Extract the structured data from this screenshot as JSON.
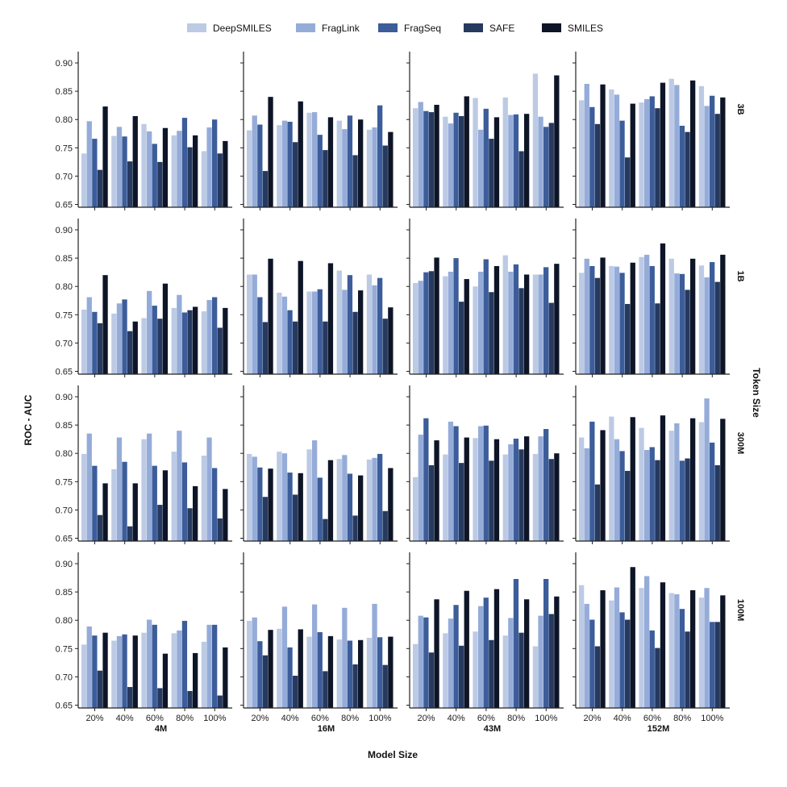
{
  "chart_data": {
    "type": "bar",
    "xlabel": "Model Size",
    "ylabel": "ROC - AUC",
    "facet_right_label": "Token Size",
    "ylim": [
      0.645,
      0.92
    ],
    "yticks": [
      "0.65",
      "0.70",
      "0.75",
      "0.80",
      "0.85",
      "0.90"
    ],
    "yticks_values": [
      0.65,
      0.7,
      0.75,
      0.8,
      0.85,
      0.9
    ],
    "categories": [
      "20%",
      "40%",
      "60%",
      "80%",
      "100%"
    ],
    "column_facets": [
      "4M",
      "16M",
      "43M",
      "152M"
    ],
    "row_facets": [
      "3B",
      "1B",
      "300M",
      "100M"
    ],
    "legend": {
      "position": "top",
      "series": [
        {
          "name": "DeepSMILES",
          "color": "#bccae4"
        },
        {
          "name": "FragLink",
          "color": "#95acd9"
        },
        {
          "name": "FragSeq",
          "color": "#3c5d9a"
        },
        {
          "name": "SAFE",
          "color": "#26395f"
        },
        {
          "name": "SMILES",
          "color": "#0d1527"
        }
      ]
    },
    "panels": [
      [
        {
          "row": "3B",
          "col": "4M",
          "values": [
            [
              0.74,
              0.797,
              0.766,
              0.711,
              0.823
            ],
            [
              0.771,
              0.787,
              0.77,
              0.726,
              0.806
            ],
            [
              0.792,
              0.779,
              0.757,
              0.725,
              0.785
            ],
            [
              0.772,
              0.78,
              0.803,
              0.751,
              0.772
            ],
            [
              0.744,
              0.786,
              0.8,
              0.74,
              0.762
            ]
          ]
        },
        {
          "row": "3B",
          "col": "16M",
          "values": [
            [
              0.781,
              0.807,
              0.791,
              0.709,
              0.84
            ],
            [
              0.79,
              0.798,
              0.796,
              0.76,
              0.832
            ],
            [
              0.812,
              0.813,
              0.773,
              0.746,
              0.804
            ],
            [
              0.798,
              0.783,
              0.807,
              0.737,
              0.8
            ],
            [
              0.782,
              0.786,
              0.825,
              0.754,
              0.778
            ]
          ]
        },
        {
          "row": "3B",
          "col": "43M",
          "values": [
            [
              0.82,
              0.831,
              0.815,
              0.813,
              0.826
            ],
            [
              0.805,
              0.793,
              0.812,
              0.806,
              0.841
            ],
            [
              0.838,
              0.782,
              0.819,
              0.766,
              0.804
            ],
            [
              0.839,
              0.808,
              0.809,
              0.744,
              0.81
            ],
            [
              0.881,
              0.805,
              0.787,
              0.794,
              0.878
            ]
          ]
        },
        {
          "row": "3B",
          "col": "152M",
          "values": [
            [
              0.834,
              0.863,
              0.822,
              0.792,
              0.862
            ],
            [
              0.853,
              0.844,
              0.798,
              0.733,
              0.828
            ],
            [
              0.83,
              0.836,
              0.841,
              0.82,
              0.865
            ],
            [
              0.872,
              0.861,
              0.789,
              0.778,
              0.869
            ],
            [
              0.859,
              0.824,
              0.842,
              0.81,
              0.839
            ]
          ]
        }
      ],
      [
        {
          "row": "1B",
          "col": "4M",
          "values": [
            [
              0.759,
              0.781,
              0.755,
              0.735,
              0.82
            ],
            [
              0.752,
              0.77,
              0.777,
              0.721,
              0.738
            ],
            [
              0.744,
              0.792,
              0.766,
              0.743,
              0.805
            ],
            [
              0.762,
              0.785,
              0.754,
              0.758,
              0.764
            ],
            [
              0.756,
              0.776,
              0.781,
              0.727,
              0.762
            ]
          ]
        },
        {
          "row": "1B",
          "col": "16M",
          "values": [
            [
              0.821,
              0.821,
              0.781,
              0.737,
              0.849
            ],
            [
              0.789,
              0.782,
              0.758,
              0.738,
              0.845
            ],
            [
              0.791,
              0.791,
              0.795,
              0.738,
              0.841
            ],
            [
              0.828,
              0.794,
              0.82,
              0.755,
              0.793
            ],
            [
              0.821,
              0.802,
              0.815,
              0.743,
              0.763
            ]
          ]
        },
        {
          "row": "1B",
          "col": "43M",
          "values": [
            [
              0.806,
              0.81,
              0.825,
              0.827,
              0.851
            ],
            [
              0.818,
              0.826,
              0.85,
              0.773,
              0.813
            ],
            [
              0.8,
              0.826,
              0.848,
              0.79,
              0.836
            ],
            [
              0.855,
              0.826,
              0.839,
              0.797,
              0.821
            ],
            [
              0.821,
              0.821,
              0.834,
              0.771,
              0.84
            ]
          ]
        },
        {
          "row": "1B",
          "col": "152M",
          "values": [
            [
              0.824,
              0.849,
              0.836,
              0.815,
              0.851
            ],
            [
              0.836,
              0.835,
              0.824,
              0.769,
              0.842
            ],
            [
              0.852,
              0.856,
              0.836,
              0.77,
              0.876
            ],
            [
              0.849,
              0.823,
              0.822,
              0.794,
              0.849
            ],
            [
              0.837,
              0.816,
              0.843,
              0.808,
              0.856
            ]
          ]
        }
      ],
      [
        {
          "row": "300M",
          "col": "4M",
          "values": [
            [
              0.799,
              0.835,
              0.778,
              0.691,
              0.747
            ],
            [
              0.772,
              0.828,
              0.785,
              0.671,
              0.747
            ],
            [
              0.825,
              0.835,
              0.778,
              0.709,
              0.77
            ],
            [
              0.803,
              0.84,
              0.784,
              0.703,
              0.742
            ],
            [
              0.796,
              0.828,
              0.774,
              0.685,
              0.737
            ]
          ]
        },
        {
          "row": "300M",
          "col": "16M",
          "values": [
            [
              0.799,
              0.794,
              0.775,
              0.723,
              0.773
            ],
            [
              0.803,
              0.8,
              0.766,
              0.727,
              0.765
            ],
            [
              0.807,
              0.823,
              0.757,
              0.684,
              0.788
            ],
            [
              0.79,
              0.797,
              0.764,
              0.69,
              0.761
            ],
            [
              0.789,
              0.792,
              0.799,
              0.698,
              0.774
            ]
          ]
        },
        {
          "row": "300M",
          "col": "43M",
          "values": [
            [
              0.758,
              0.833,
              0.862,
              0.779,
              0.823
            ],
            [
              0.798,
              0.856,
              0.848,
              0.783,
              0.828
            ],
            [
              0.827,
              0.848,
              0.849,
              0.787,
              0.825
            ],
            [
              0.798,
              0.816,
              0.826,
              0.807,
              0.83
            ],
            [
              0.799,
              0.83,
              0.843,
              0.79,
              0.8
            ]
          ]
        },
        {
          "row": "300M",
          "col": "152M",
          "values": [
            [
              0.828,
              0.809,
              0.856,
              0.745,
              0.841
            ],
            [
              0.865,
              0.825,
              0.804,
              0.769,
              0.864
            ],
            [
              0.845,
              0.806,
              0.811,
              0.788,
              0.867
            ],
            [
              0.84,
              0.853,
              0.787,
              0.791,
              0.862
            ],
            [
              0.855,
              0.897,
              0.819,
              0.779,
              0.861
            ]
          ]
        }
      ],
      [
        {
          "row": "100M",
          "col": "4M",
          "values": [
            [
              0.757,
              0.789,
              0.773,
              0.711,
              0.778
            ],
            [
              0.764,
              0.772,
              0.775,
              0.682,
              0.773
            ],
            [
              0.778,
              0.801,
              0.792,
              0.68,
              0.741
            ],
            [
              0.777,
              0.782,
              0.799,
              0.675,
              0.742
            ],
            [
              0.762,
              0.792,
              0.792,
              0.667,
              0.752
            ]
          ]
        },
        {
          "row": "100M",
          "col": "16M",
          "values": [
            [
              0.799,
              0.805,
              0.763,
              0.738,
              0.783
            ],
            [
              0.785,
              0.824,
              0.752,
              0.702,
              0.784
            ],
            [
              0.771,
              0.828,
              0.779,
              0.71,
              0.772
            ],
            [
              0.766,
              0.822,
              0.764,
              0.722,
              0.765
            ],
            [
              0.769,
              0.829,
              0.77,
              0.721,
              0.771
            ]
          ]
        },
        {
          "row": "100M",
          "col": "43M",
          "values": [
            [
              0.758,
              0.808,
              0.805,
              0.743,
              0.837
            ],
            [
              0.777,
              0.803,
              0.827,
              0.755,
              0.852
            ],
            [
              0.78,
              0.825,
              0.84,
              0.765,
              0.855
            ],
            [
              0.773,
              0.804,
              0.873,
              0.778,
              0.837
            ],
            [
              0.754,
              0.808,
              0.873,
              0.811,
              0.842
            ]
          ]
        },
        {
          "row": "100M",
          "col": "152M",
          "values": [
            [
              0.862,
              0.829,
              0.801,
              0.754,
              0.853
            ],
            [
              0.835,
              0.858,
              0.814,
              0.801,
              0.894
            ],
            [
              0.857,
              0.878,
              0.782,
              0.751,
              0.867
            ],
            [
              0.848,
              0.846,
              0.82,
              0.78,
              0.853
            ],
            [
              0.84,
              0.857,
              0.797,
              0.797,
              0.844
            ]
          ]
        }
      ]
    ]
  }
}
